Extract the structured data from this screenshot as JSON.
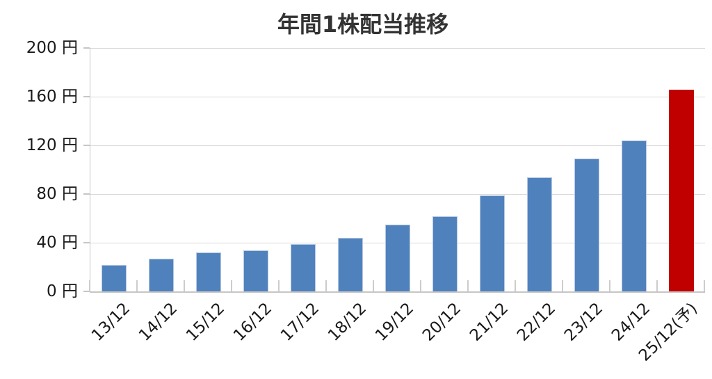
{
  "chart_data": {
    "type": "bar",
    "title": "年間1株配当推移",
    "unit": "円",
    "categories": [
      "13/12",
      "14/12",
      "15/12",
      "16/12",
      "17/12",
      "18/12",
      "19/12",
      "20/12",
      "21/12",
      "22/12",
      "23/12",
      "24/12",
      "25/12(予)"
    ],
    "values": [
      22,
      27,
      32,
      34,
      39,
      44,
      55,
      62,
      79,
      94,
      109,
      124,
      166
    ],
    "forecast_index": 12,
    "ylim": [
      0,
      200
    ],
    "yticks": [
      0,
      40,
      80,
      120,
      160,
      200
    ],
    "ytick_labels": [
      "0 円",
      "40 円",
      "80 円",
      "120 円",
      "160 円",
      "200 円"
    ],
    "grid": true,
    "legend": "none",
    "colors": {
      "bar": "#4f81bd",
      "bar_border": "#b7c9e2",
      "forecast_bar": "#c00000",
      "gridline": "#d8d8d8",
      "axis_line": "#c6c6c6",
      "title_text": "#333333",
      "tick_text": "#1a1a1a"
    }
  }
}
